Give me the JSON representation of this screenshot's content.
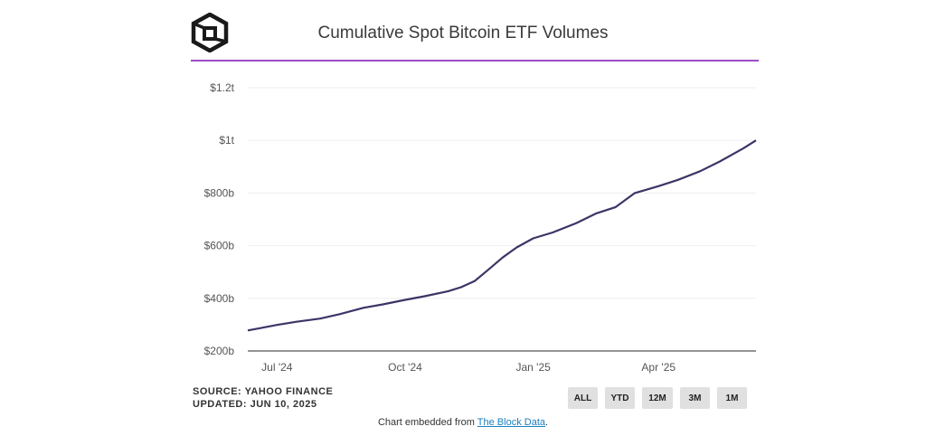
{
  "header": {
    "title": "Cumulative Spot Bitcoin ETF Volumes",
    "logo_icon": "the-block-cube-logo-icon",
    "rule_color": "#9b4dca"
  },
  "footer": {
    "source": "SOURCE: YAHOO FINANCE",
    "updated": "UPDATED: JUN 10, 2025",
    "embed_prefix": "Chart embedded from ",
    "embed_link": "The Block Data",
    "embed_suffix": "."
  },
  "range_buttons": [
    {
      "label": "ALL"
    },
    {
      "label": "YTD"
    },
    {
      "label": "12M"
    },
    {
      "label": "3M"
    },
    {
      "label": "1M"
    }
  ],
  "chart_data": {
    "type": "line",
    "title": "Cumulative Spot Bitcoin ETF Volumes",
    "xlabel": "",
    "ylabel": "",
    "line_color": "#3d3566",
    "grid": true,
    "ylim": [
      200,
      1200
    ],
    "y_ticks": [
      {
        "value": 200,
        "label": "$200b"
      },
      {
        "value": 400,
        "label": "$400b"
      },
      {
        "value": 600,
        "label": "$600b"
      },
      {
        "value": 800,
        "label": "$800b"
      },
      {
        "value": 1000,
        "label": "$1t"
      },
      {
        "value": 1200,
        "label": "$1.2t"
      }
    ],
    "xlim": [
      "2024-06-10",
      "2025-06-10"
    ],
    "x_ticks": [
      {
        "date": "2024-07-01",
        "label": "Jul '24"
      },
      {
        "date": "2024-10-01",
        "label": "Oct '24"
      },
      {
        "date": "2025-01-01",
        "label": "Jan '25"
      },
      {
        "date": "2025-04-01",
        "label": "Apr '25"
      }
    ],
    "series": [
      {
        "points": [
          [
            "2024-06-10",
            278
          ],
          [
            "2024-06-20",
            288
          ],
          [
            "2024-07-01",
            299
          ],
          [
            "2024-07-15",
            311
          ],
          [
            "2024-08-01",
            323
          ],
          [
            "2024-08-15",
            340
          ],
          [
            "2024-09-01",
            364
          ],
          [
            "2024-09-15",
            377
          ],
          [
            "2024-10-01",
            394
          ],
          [
            "2024-10-15",
            408
          ],
          [
            "2024-11-01",
            427
          ],
          [
            "2024-11-10",
            442
          ],
          [
            "2024-11-20",
            466
          ],
          [
            "2024-11-30",
            510
          ],
          [
            "2024-12-10",
            555
          ],
          [
            "2024-12-20",
            593
          ],
          [
            "2025-01-01",
            628
          ],
          [
            "2025-01-15",
            650
          ],
          [
            "2025-02-01",
            686
          ],
          [
            "2025-02-15",
            722
          ],
          [
            "2025-03-01",
            746
          ],
          [
            "2025-03-15",
            800
          ],
          [
            "2025-04-01",
            826
          ],
          [
            "2025-04-15",
            850
          ],
          [
            "2025-05-01",
            883
          ],
          [
            "2025-05-15",
            920
          ],
          [
            "2025-06-01",
            970
          ],
          [
            "2025-06-10",
            1000
          ]
        ]
      }
    ]
  }
}
